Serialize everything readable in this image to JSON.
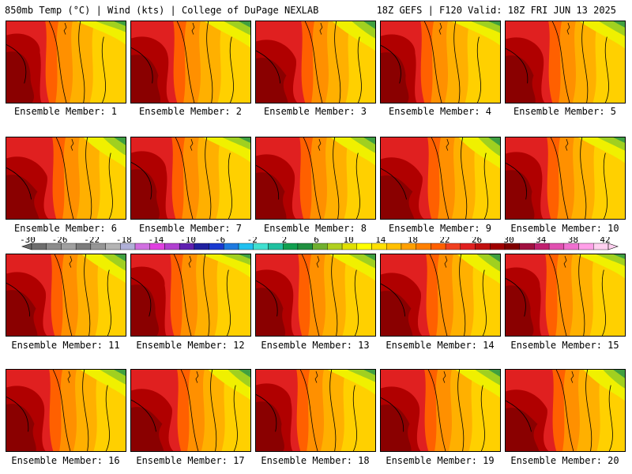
{
  "header": {
    "left": "850mb Temp (°C) | Wind (kts) | College of DuPage NEXLAB",
    "right": "18Z GEFS | F120 Valid: 18Z FRI JUN 13 2025"
  },
  "panels": [
    {
      "label": "Ensemble Member: 1"
    },
    {
      "label": "Ensemble Member: 2"
    },
    {
      "label": "Ensemble Member: 3"
    },
    {
      "label": "Ensemble Member: 4"
    },
    {
      "label": "Ensemble Member: 5"
    },
    {
      "label": "Ensemble Member: 6"
    },
    {
      "label": "Ensemble Member: 7"
    },
    {
      "label": "Ensemble Member: 8"
    },
    {
      "label": "Ensemble Member: 9"
    },
    {
      "label": "Ensemble Member: 10"
    },
    {
      "label": "Ensemble Member: 11"
    },
    {
      "label": "Ensemble Member: 12"
    },
    {
      "label": "Ensemble Member: 13"
    },
    {
      "label": "Ensemble Member: 14"
    },
    {
      "label": "Ensemble Member: 15"
    },
    {
      "label": "Ensemble Member: 16"
    },
    {
      "label": "Ensemble Member: 17"
    },
    {
      "label": "Ensemble Member: 18"
    },
    {
      "label": "Ensemble Member: 19"
    },
    {
      "label": "Ensemble Member: 20"
    }
  ],
  "colorbar": {
    "tick_labels": [
      "-30",
      "-26",
      "-22",
      "-18",
      "-14",
      "-10",
      "-6",
      "-2",
      "2",
      "6",
      "10",
      "14",
      "18",
      "22",
      "26",
      "30",
      "34",
      "38",
      "42"
    ],
    "colors": [
      "#6e6e6e",
      "#8c8c8c",
      "#a0a0a0",
      "#7c7c7c",
      "#969696",
      "#b4b4b4",
      "#b0b0d8",
      "#d070e0",
      "#e040e0",
      "#b040d0",
      "#6020b0",
      "#2020a0",
      "#1a3ad0",
      "#1e7ae0",
      "#20c0f0",
      "#40e0d0",
      "#20c0a0",
      "#10a050",
      "#209040",
      "#70b030",
      "#b0d020",
      "#e0e000",
      "#ffff00",
      "#ffe000",
      "#ffc000",
      "#ffa000",
      "#ff8000",
      "#ff6000",
      "#f04020",
      "#e02020",
      "#c01010",
      "#a00000",
      "#800000",
      "#a01040",
      "#c02070",
      "#e050b0",
      "#f070d0",
      "#ffa0e8",
      "#ffd0f0"
    ]
  }
}
